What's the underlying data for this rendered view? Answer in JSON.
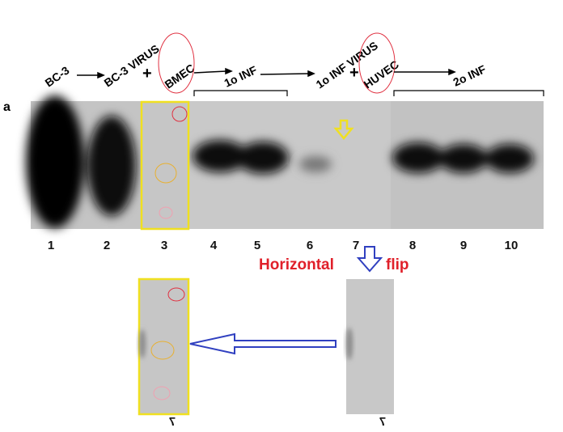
{
  "figure": {
    "panel_label": "a",
    "top_labels": [
      "BC-3",
      "BC-3 VIRUS",
      "+",
      "BMEC",
      "1o INF",
      "1o INF VIRUS",
      "+",
      "HUVEC",
      "2o INF"
    ],
    "lane_numbers": [
      "1",
      "2",
      "3",
      "4",
      "5",
      "6",
      "7",
      "8",
      "9",
      "10"
    ],
    "annotation": {
      "horizontal": "Horizontal",
      "flip": "flip"
    },
    "flipped_labels": [
      "7",
      "7"
    ]
  }
}
